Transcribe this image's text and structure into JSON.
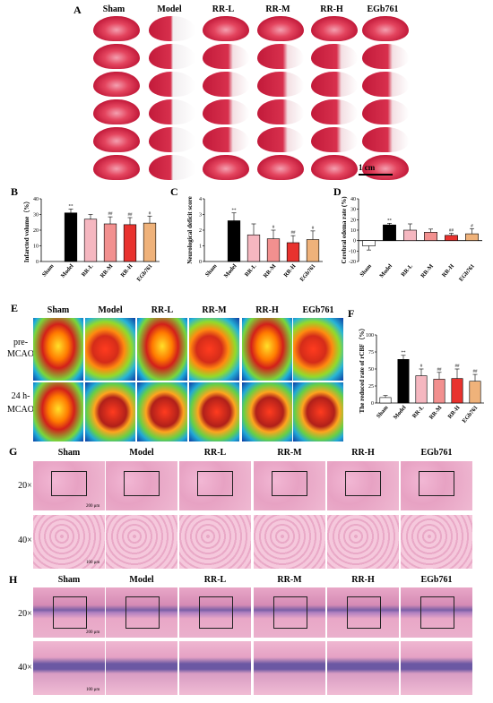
{
  "panels": {
    "A": "A",
    "B": "B",
    "C": "C",
    "D": "D",
    "E": "E",
    "F": "F",
    "G": "G",
    "H": "H"
  },
  "groups": [
    "Sham",
    "Model",
    "RR-L",
    "RR-M",
    "RR-H",
    "EGb761"
  ],
  "scale_A": "1 cm",
  "row_labels_E": {
    "pre_1": "pre-",
    "pre_2": "MCAO",
    "post_1": "24 h-",
    "post_2": "MCAO"
  },
  "row_labels_G": {
    "r20": "20×",
    "r40": "40×"
  },
  "row_labels_H": {
    "r20": "20×",
    "r40": "40×"
  },
  "scale_G": {
    "s200": "200 μm",
    "s100": "100 μm"
  },
  "scale_H": {
    "s200": "200 μm",
    "s100": "100 μm"
  },
  "chart_data": [
    {
      "id": "B",
      "type": "bar",
      "ylabel": "Infarcted volume（%）",
      "ylim": [
        0,
        40
      ],
      "yticks": [
        0,
        10,
        20,
        30,
        40
      ],
      "categories": [
        "Sham",
        "Model",
        "RR-L",
        "RR-M",
        "RR-H",
        "EGb761"
      ],
      "values": [
        0,
        31,
        27,
        24,
        23.5,
        24.5
      ],
      "errors": [
        0,
        2.5,
        3,
        4.5,
        4.5,
        4.5
      ],
      "sig": [
        "",
        "**",
        "",
        "##",
        "##",
        "#"
      ],
      "colors": [
        "#ffffff",
        "#000000",
        "#f5b7c0",
        "#f2908f",
        "#e8322e",
        "#efb27a"
      ]
    },
    {
      "id": "C",
      "type": "bar",
      "ylabel": "Neurological deficit score",
      "ylim": [
        0,
        4
      ],
      "yticks": [
        0,
        1,
        2,
        3,
        4
      ],
      "categories": [
        "Sham",
        "Model",
        "RR-L",
        "RR-M",
        "RR-H",
        "EGb761"
      ],
      "values": [
        0,
        2.6,
        1.7,
        1.45,
        1.2,
        1.4
      ],
      "errors": [
        0,
        0.5,
        0.7,
        0.55,
        0.45,
        0.55
      ],
      "sig": [
        "",
        "**",
        "",
        "#",
        "##",
        "#"
      ],
      "colors": [
        "#ffffff",
        "#000000",
        "#f5b7c0",
        "#f2908f",
        "#e8322e",
        "#efb27a"
      ]
    },
    {
      "id": "D",
      "type": "bar",
      "ylabel": "Cerebral edema rate (%)",
      "ylim": [
        -20,
        40
      ],
      "yticks": [
        -20,
        -10,
        0,
        10,
        20,
        30,
        40
      ],
      "categories": [
        "Sham",
        "Model",
        "RR-L",
        "RR-M",
        "RR-H",
        "EGb761"
      ],
      "values": [
        -5,
        15,
        10,
        8,
        5,
        6.5
      ],
      "errors": [
        4,
        1.5,
        6,
        3,
        2,
        5
      ],
      "sig": [
        "",
        "**",
        "",
        "",
        "##",
        "#"
      ],
      "colors": [
        "#ffffff",
        "#000000",
        "#f5b7c0",
        "#f2908f",
        "#e8322e",
        "#efb27a"
      ]
    },
    {
      "id": "F",
      "type": "bar",
      "ylabel": "The reduced rate of rCBF（%）",
      "ylim": [
        0,
        100
      ],
      "yticks": [
        0,
        25,
        50,
        75,
        100
      ],
      "categories": [
        "Sham",
        "Model",
        "RR-L",
        "RR-M",
        "RR-H",
        "EGb761"
      ],
      "values": [
        8,
        64,
        40,
        35,
        36,
        32
      ],
      "errors": [
        3,
        6,
        10,
        10,
        14,
        10
      ],
      "sig": [
        "",
        "**",
        "#",
        "##",
        "##",
        "##"
      ],
      "colors": [
        "#ffffff",
        "#000000",
        "#f5b7c0",
        "#f2908f",
        "#e8322e",
        "#efb27a"
      ]
    }
  ]
}
